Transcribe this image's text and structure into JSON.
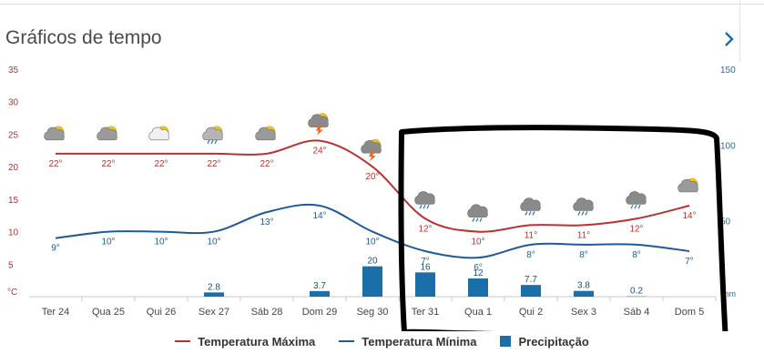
{
  "header": {
    "title": "Gráficos de tempo",
    "next_icon": "chevron-right-icon"
  },
  "chart_data": {
    "type": "line",
    "categories": [
      "Ter 24",
      "Qua 25",
      "Qui 26",
      "Sex 27",
      "Sáb 28",
      "Dom 29",
      "Seg 30",
      "Ter 31",
      "Qua 1",
      "Qui 2",
      "Sex 3",
      "Sáb 4",
      "Dom 5"
    ],
    "y_left": {
      "unit": "°C",
      "min": 0,
      "max": 35,
      "ticks": [
        "5",
        "10",
        "15",
        "20",
        "25",
        "30",
        "35"
      ]
    },
    "y_right": {
      "unit": "mm",
      "min": 0,
      "max": 150,
      "ticks": [
        "50",
        "100",
        "150"
      ]
    },
    "grid": false,
    "legend_position": "bottom",
    "series": [
      {
        "name": "Temperatura Máxima",
        "kind": "line",
        "axis": "left",
        "color": "#b83232",
        "values": [
          22,
          22,
          22,
          22,
          22,
          24,
          20,
          12,
          10,
          11,
          11,
          12,
          14
        ],
        "labels": [
          "22°",
          "22°",
          "22°",
          "22°",
          "22°",
          "24°",
          "20°",
          "12°",
          "10°",
          "11°",
          "11°",
          "12°",
          "14°"
        ]
      },
      {
        "name": "Temperatura Mínima",
        "kind": "line",
        "axis": "left",
        "color": "#1f5a96",
        "values": [
          9,
          10,
          10,
          10,
          13,
          14,
          10,
          7,
          6,
          8,
          8,
          8,
          7
        ],
        "labels": [
          "9°",
          "10°",
          "10°",
          "10°",
          "13°",
          "14°",
          "10°",
          "7°",
          "6°",
          "8°",
          "8°",
          "8°",
          "7°"
        ]
      },
      {
        "name": "Precipitação",
        "kind": "bar",
        "axis": "right",
        "color": "#1a6fa8",
        "values": [
          null,
          null,
          null,
          2.8,
          null,
          3.7,
          20,
          16,
          12,
          7.7,
          3.8,
          0.2,
          null
        ],
        "labels": [
          "",
          "",
          "",
          "2.8",
          "",
          "3.7",
          "20",
          "16",
          "12",
          "7.7",
          "3.8",
          "0.2",
          ""
        ]
      }
    ],
    "weather_icons": [
      "partly-cloudy-icon",
      "partly-cloudy-icon",
      "partly-sunny-icon",
      "sun-rain-icon",
      "partly-cloudy-icon",
      "storm-sun-icon",
      "storm-sun-icon",
      "cloud-rain-icon",
      "cloud-rain-icon",
      "cloud-rain-icon",
      "cloud-rain-icon",
      "cloud-rain-icon",
      "partly-cloudy-icon"
    ]
  }
}
